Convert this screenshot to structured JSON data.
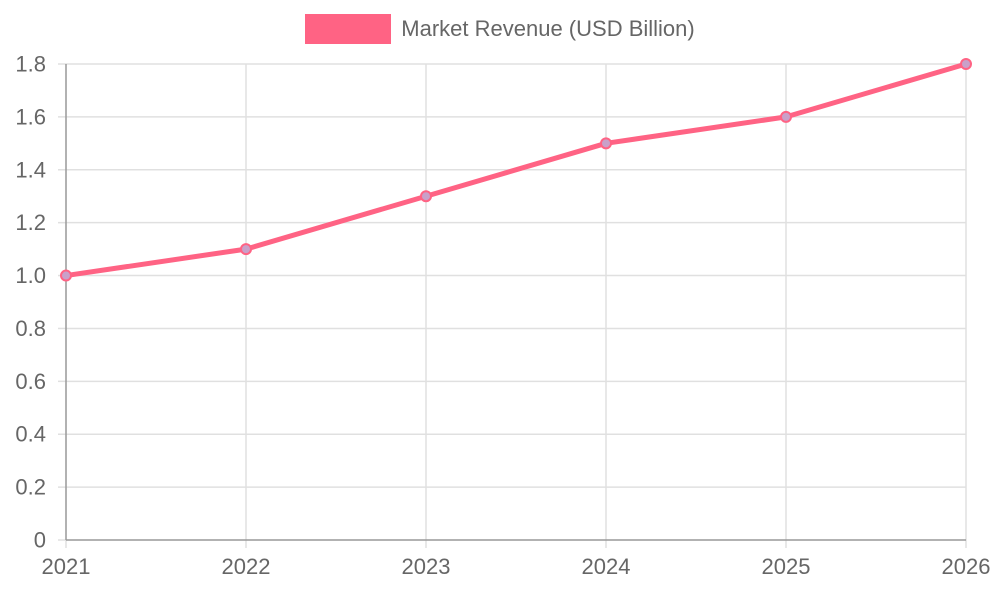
{
  "chart_data": {
    "type": "line",
    "x": [
      "2021",
      "2022",
      "2023",
      "2024",
      "2025",
      "2026"
    ],
    "series": [
      {
        "name": "Market Revenue (USD Billion)",
        "values": [
          1.0,
          1.1,
          1.3,
          1.5,
          1.6,
          1.8
        ]
      }
    ],
    "ylim": [
      0,
      1.8
    ],
    "yticks": [
      "0",
      "0.2",
      "0.4",
      "0.6",
      "0.8",
      "1.0",
      "1.2",
      "1.4",
      "1.6",
      "1.8"
    ],
    "grid": true,
    "legend_position": "top",
    "colors": {
      "line": "#ff6384",
      "point_fill": "#c9a0c9",
      "grid": "#e0e0e0",
      "axis": "#999999",
      "text": "#666666"
    }
  }
}
